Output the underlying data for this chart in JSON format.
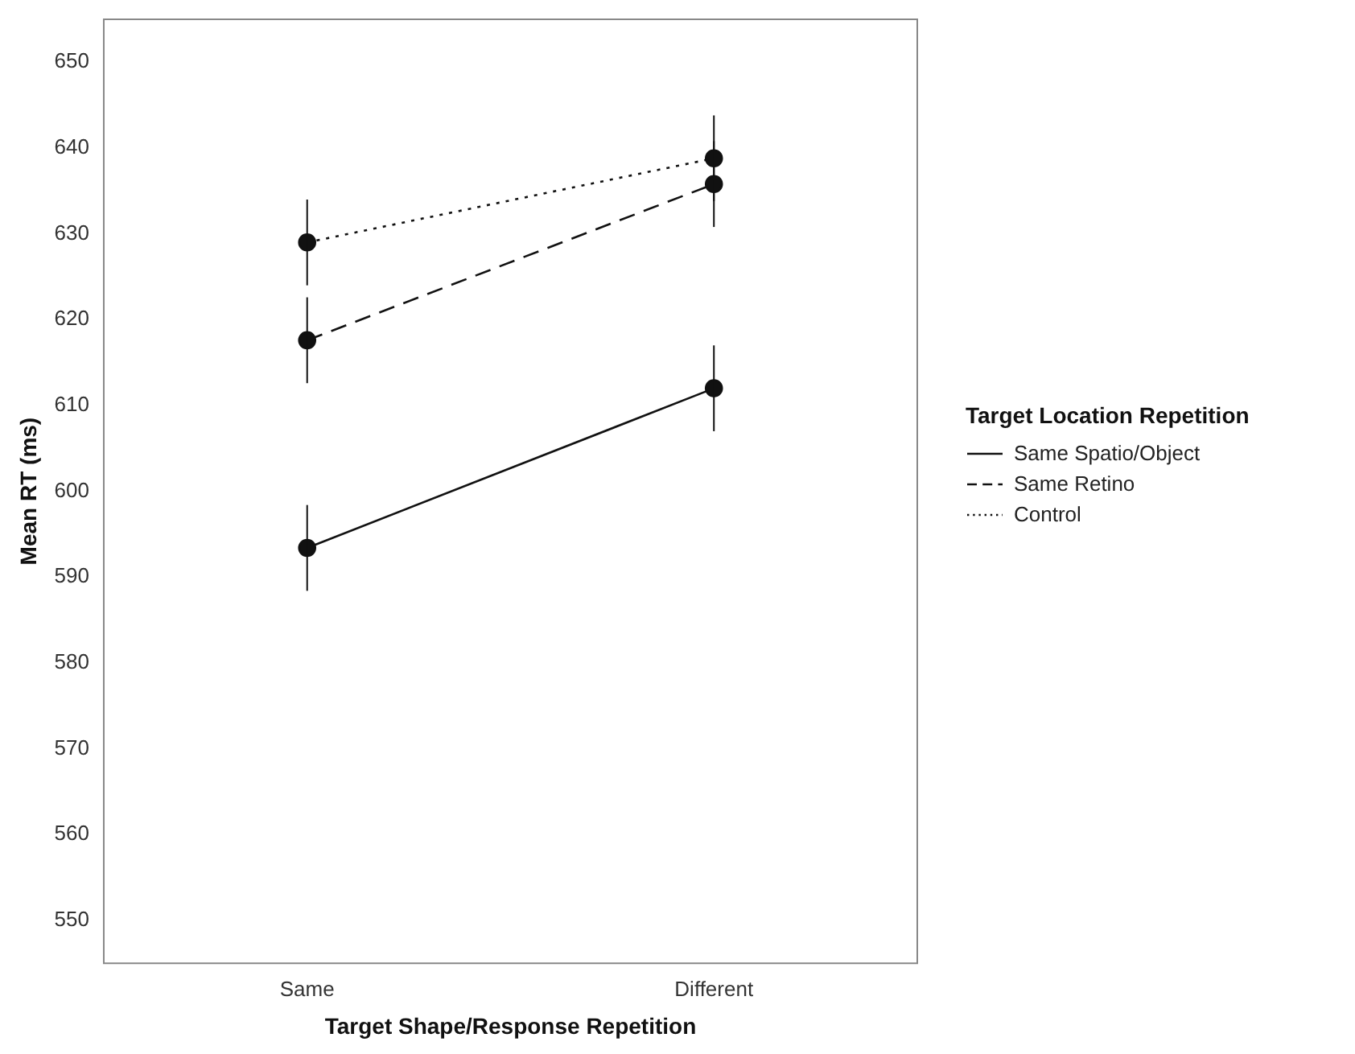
{
  "chart_data": {
    "type": "line",
    "xlabel": "Target Shape/Response Repetition",
    "ylabel": "Mean RT (ms)",
    "legend_title": "Target Location Repetition",
    "categories": [
      "Same",
      "Different"
    ],
    "series": [
      {
        "name": "Same Spatio/Object",
        "color": "#111111",
        "values": [
          593.4,
          612.0
        ],
        "errors": [
          5,
          5
        ],
        "line_style": "solid"
      },
      {
        "name": "Same Retino",
        "color": "#111111",
        "values": [
          617.6,
          635.8
        ],
        "errors": [
          5,
          5
        ],
        "line_style": "dashed"
      },
      {
        "name": "Control",
        "color": "#111111",
        "values": [
          629.0,
          638.8
        ],
        "errors": [
          5,
          5
        ],
        "line_style": "dotted"
      }
    ],
    "ylim": [
      545,
      655
    ],
    "yticks": [
      550,
      560,
      570,
      580,
      590,
      600,
      610,
      620,
      630,
      640,
      650
    ],
    "grid": false,
    "legend": "right",
    "marker": "circle"
  }
}
